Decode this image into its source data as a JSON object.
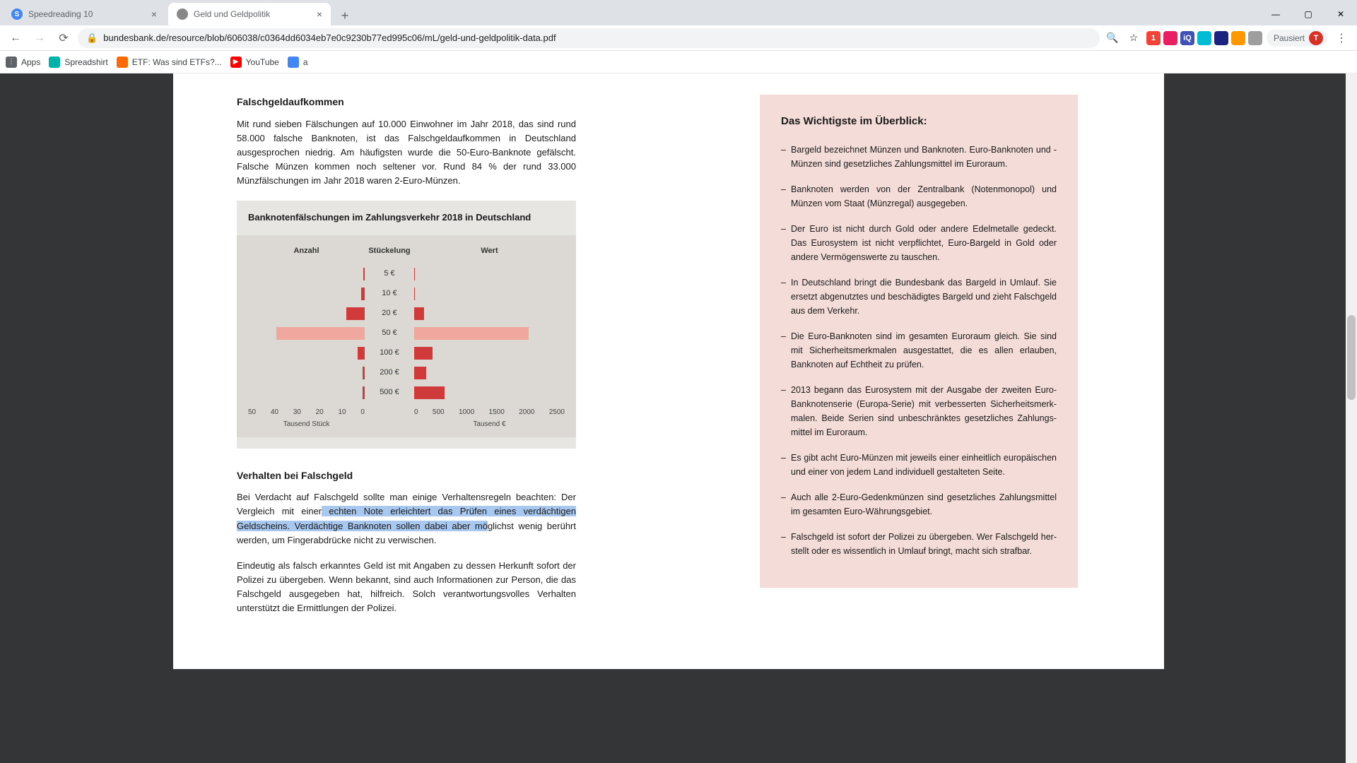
{
  "tabs": [
    {
      "title": "Speedreading 10",
      "favicon_letter": "S",
      "favicon_bg": "#4285f4"
    },
    {
      "title": "Geld und Geldpolitik",
      "favicon_letter": "",
      "favicon_bg": "#888888"
    }
  ],
  "url": "bundesbank.de/resource/blob/606038/c0364dd6034eb7e0c9230b77ed995c06/mL/geld-und-geldpolitik-data.pdf",
  "profile": {
    "label": "Pausiert",
    "initial": "T"
  },
  "bookmarks": [
    {
      "label": "Apps",
      "icon_bg": "#5f6368",
      "icon_txt": "⋮⋮⋮"
    },
    {
      "label": "Spreadshirt",
      "icon_bg": "#00b2a9",
      "icon_txt": ""
    },
    {
      "label": "ETF: Was sind ETFs?...",
      "icon_bg": "#ff6a00",
      "icon_txt": ""
    },
    {
      "label": "YouTube",
      "icon_bg": "#ff0000",
      "icon_txt": "▶"
    },
    {
      "label": "a",
      "icon_bg": "#4285f4",
      "icon_txt": ""
    }
  ],
  "left": {
    "h1": "Falschgeldaufkommen",
    "p1": "Mit rund sieben Fälschungen auf 10.000 Einwohner im Jahr 2018, das sind rund 58.000 falsche Banknoten, ist das Falschgeldaufkommen in Deutschland ausgesprochen niedrig. Am häufigsten wurde die 50-Euro-Banknote ge­fälscht. Falsche Münzen kommen noch seltener vor. Rund 84 % der rund 33.000 Münzfälschungen im Jahr 2018 waren 2-Euro-Münzen.",
    "h2": "Verhalten bei Falschgeld",
    "p2_pre": "Bei Verdacht auf Falschgeld sollte man einige Verhaltensregeln beachten: Der Vergleich mit einer",
    "p2_hl": " echten Note erleichtert das Prüfen eines verdächtigen Geldscheins. Verdächtige Banknoten sollen dabei aber mö",
    "p2_post": "glichst wenig be­rührt werden, um Fingerabdrücke nicht zu verwischen.",
    "p3": "Eindeutig als falsch erkanntes Geld ist mit Angaben zu dessen Herkunft sofort der Polizei zu übergeben. Wenn bekannt, sind auch Informationen zur Person, die das Falschgeld ausgegeben hat, hilfreich. Solch verantwortungsvolles Ver­halten unterstützt die Ermittlungen der Polizei."
  },
  "chart": {
    "title": "Banknotenfälschungen im Zahlungsverkehr 2018 in Deutschland",
    "headers": {
      "left": "Anzahl",
      "mid": "Stückelung",
      "right": "Wert"
    },
    "left_max": 50,
    "right_max": 2500,
    "left_ticks": [
      "50",
      "40",
      "30",
      "20",
      "10",
      "0"
    ],
    "right_ticks": [
      "0",
      "500",
      "1000",
      "1500",
      "2000",
      "2500"
    ],
    "left_axis_label": "Tausend Stück",
    "right_axis_label": "Tausend €",
    "bar_color": "#d03a3a",
    "bar_color_light": "#f0a89e",
    "rows": [
      {
        "denom": "5 €",
        "left_val": 0.6,
        "right_val": 3,
        "light": false
      },
      {
        "denom": "10 €",
        "left_val": 1.5,
        "right_val": 15,
        "light": false
      },
      {
        "denom": "20 €",
        "left_val": 8,
        "right_val": 160,
        "light": false
      },
      {
        "denom": "50 €",
        "left_val": 38,
        "right_val": 1900,
        "light": true
      },
      {
        "denom": "100 €",
        "left_val": 3,
        "right_val": 300,
        "light": false
      },
      {
        "denom": "200 €",
        "left_val": 1,
        "right_val": 200,
        "light": false
      },
      {
        "denom": "500 €",
        "left_val": 1,
        "right_val": 500,
        "light": false
      }
    ]
  },
  "summary": {
    "title": "Das Wichtigste im Überblick:",
    "items": [
      "Bargeld bezeichnet Münzen und Banknoten. Euro-Banknoten und -Münzen sind gesetzliches Zahlungsmittel im Euroraum.",
      "Banknoten werden von der Zentralbank (Notenmonopol) und Münzen vom Staat (Münzregal) ausgegeben.",
      "Der Euro ist nicht durch Gold oder andere Edelmetalle gedeckt. Das Eurosystem ist nicht verpflichtet, Euro-Bargeld in Gold oder andere Vermögenswerte zu tauschen.",
      "In Deutschland bringt die Bundesbank das Bargeld in Umlauf. Sie ersetzt abgenutztes und beschädigtes Bargeld und zieht Falschgeld aus dem Verkehr.",
      "Die Euro-Banknoten sind im gesamten Euroraum gleich. Sie sind mit Sicherheitsmerkmalen ausgestattet, die es allen erlauben, Bank­noten auf Echtheit zu prüfen.",
      "2013 begann das Eurosystem mit der Ausgabe der zweiten Euro-Banknotenserie (Europa-Serie) mit verbesserten Sicherheitsmerk­malen. Beide Serien sind unbeschränktes gesetzliches Zahlungs­mittel im Euroraum.",
      "Es gibt acht Euro-Münzen mit jeweils einer einheitlich europäischen und einer von jedem Land individuell gestalteten Seite.",
      "Auch alle 2-Euro-Gedenkmünzen sind gesetzliches Zahlungsmittel im gesamten Euro-Währungsgebiet.",
      "Falschgeld ist sofort der Polizei zu übergeben. Wer Falschgeld her­stellt oder es wissentlich in Umlauf bringt, macht sich strafbar."
    ]
  },
  "ext_icons": [
    {
      "bg": "#f44336",
      "txt": "1"
    },
    {
      "bg": "#e91e63",
      "txt": ""
    },
    {
      "bg": "#3f51b5",
      "txt": "iQ"
    },
    {
      "bg": "#00bcd4",
      "txt": ""
    },
    {
      "bg": "#1a237e",
      "txt": ""
    },
    {
      "bg": "#ff9800",
      "txt": ""
    },
    {
      "bg": "#9e9e9e",
      "txt": ""
    }
  ]
}
